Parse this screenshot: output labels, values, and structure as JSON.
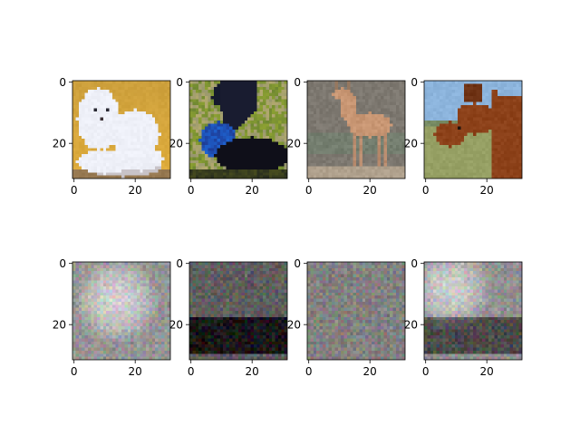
{
  "figure": {
    "background": "#ffffff",
    "axis_color": "#000000",
    "grid": 2,
    "image_size": 32
  },
  "ticks": {
    "x": [
      "0",
      "20"
    ],
    "y": [
      "0",
      "20"
    ]
  },
  "panels": [
    {
      "row": "original",
      "subject": "white dog",
      "palette": "warm yellow background, white fur"
    },
    {
      "row": "original",
      "subject": "cassowary bird",
      "palette": "green foliage, dark navy body, blue neck"
    },
    {
      "row": "original",
      "subject": "deer",
      "palette": "grey background, tan deer"
    },
    {
      "row": "original",
      "subject": "horse",
      "palette": "light blue sky, green field, brown horse"
    },
    {
      "row": "reconstruction",
      "subject": "noisy reconstruction",
      "palette": "grey checker noise, light center"
    },
    {
      "row": "reconstruction",
      "subject": "noisy reconstruction",
      "palette": "dark checker noise, black lower half"
    },
    {
      "row": "reconstruction",
      "subject": "noisy reconstruction",
      "palette": "grey checker noise"
    },
    {
      "row": "reconstruction",
      "subject": "noisy reconstruction",
      "palette": "grey checker noise, lighter top-left"
    }
  ]
}
